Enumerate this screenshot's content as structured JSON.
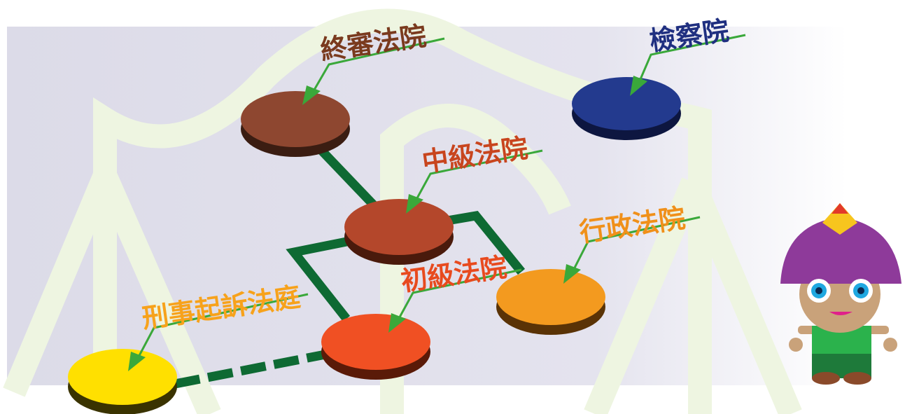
{
  "nodes": [
    {
      "label": "終審法院"
    },
    {
      "label": "檢察院"
    },
    {
      "label": "中級法院"
    },
    {
      "label": "行政法院"
    },
    {
      "label": "初級法院"
    },
    {
      "label": "刑事起訴法庭"
    }
  ]
}
